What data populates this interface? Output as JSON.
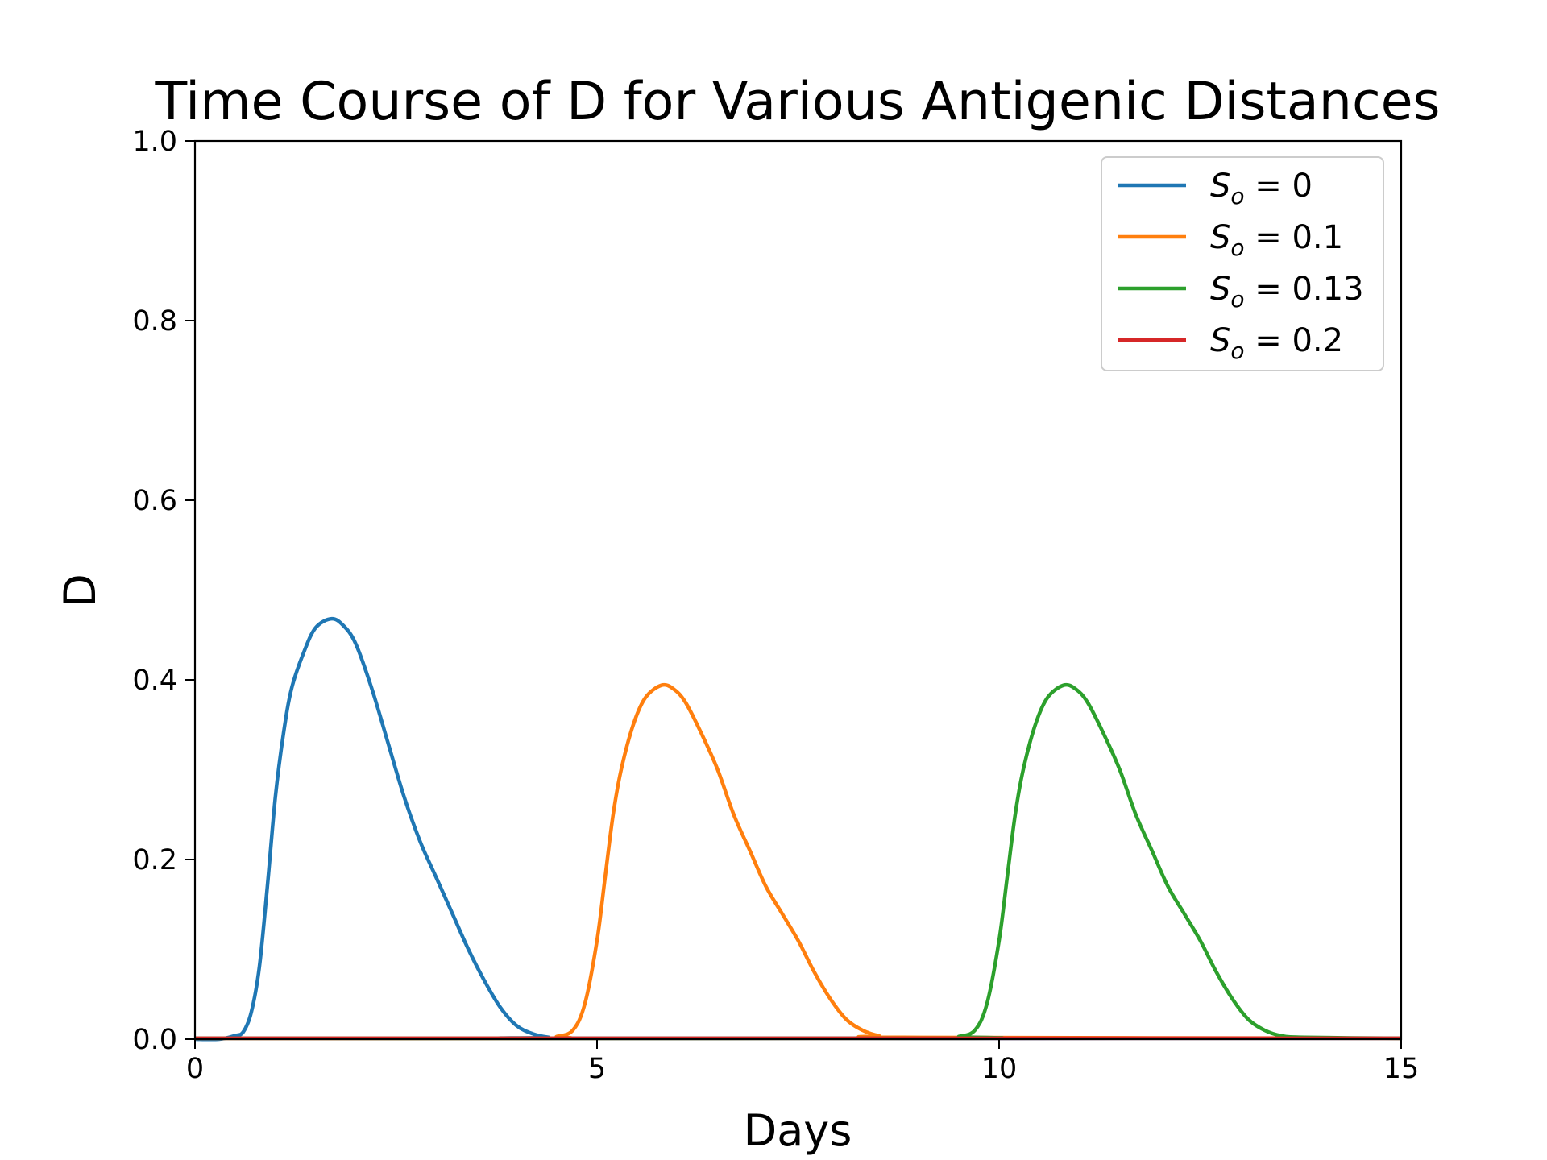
{
  "chart_data": {
    "type": "line",
    "title": "Time Course of D for Various Antigenic Distances",
    "xlabel": "Days",
    "ylabel": "D",
    "xlim": [
      0,
      15
    ],
    "ylim": [
      0,
      1.0
    ],
    "xticks": [
      0,
      5,
      10,
      15
    ],
    "xtick_labels": [
      "0",
      "5",
      "10",
      "15"
    ],
    "yticks": [
      0,
      0.2,
      0.4,
      0.6,
      0.8,
      1.0
    ],
    "ytick_labels": [
      "0.0",
      "0.2",
      "0.4",
      "0.6",
      "0.8",
      "1.0"
    ],
    "grid": false,
    "legend_position": "top-right",
    "series": [
      {
        "name": "So = 0",
        "legend_main": "S",
        "legend_sub": "o",
        "legend_value": " = 0",
        "color": "#1f77b4",
        "points": [
          [
            0,
            0
          ],
          [
            0.3,
            0
          ],
          [
            0.5,
            0.004
          ],
          [
            0.6,
            0.008
          ],
          [
            0.7,
            0.03
          ],
          [
            0.8,
            0.08
          ],
          [
            0.9,
            0.17
          ],
          [
            1.0,
            0.27
          ],
          [
            1.1,
            0.34
          ],
          [
            1.2,
            0.39
          ],
          [
            1.35,
            0.43
          ],
          [
            1.5,
            0.458
          ],
          [
            1.7,
            0.468
          ],
          [
            1.85,
            0.46
          ],
          [
            2.0,
            0.44
          ],
          [
            2.2,
            0.39
          ],
          [
            2.4,
            0.33
          ],
          [
            2.6,
            0.27
          ],
          [
            2.8,
            0.22
          ],
          [
            3.0,
            0.18
          ],
          [
            3.2,
            0.14
          ],
          [
            3.4,
            0.1
          ],
          [
            3.6,
            0.065
          ],
          [
            3.8,
            0.035
          ],
          [
            4.0,
            0.015
          ],
          [
            4.2,
            0.006
          ],
          [
            4.4,
            0.002
          ],
          [
            4.6,
            0.001
          ],
          [
            15,
            0.001
          ]
        ]
      },
      {
        "name": "So = 0.1",
        "legend_main": "S",
        "legend_sub": "o",
        "legend_value": " = 0.1",
        "color": "#ff7f0e",
        "points": [
          [
            0,
            0.001
          ],
          [
            4.3,
            0.001
          ],
          [
            4.5,
            0.003
          ],
          [
            4.7,
            0.01
          ],
          [
            4.85,
            0.04
          ],
          [
            5.0,
            0.11
          ],
          [
            5.1,
            0.18
          ],
          [
            5.2,
            0.25
          ],
          [
            5.3,
            0.3
          ],
          [
            5.45,
            0.35
          ],
          [
            5.6,
            0.38
          ],
          [
            5.8,
            0.394
          ],
          [
            5.95,
            0.39
          ],
          [
            6.1,
            0.375
          ],
          [
            6.3,
            0.34
          ],
          [
            6.5,
            0.3
          ],
          [
            6.7,
            0.25
          ],
          [
            6.9,
            0.21
          ],
          [
            7.1,
            0.17
          ],
          [
            7.3,
            0.14
          ],
          [
            7.5,
            0.11
          ],
          [
            7.7,
            0.075
          ],
          [
            7.9,
            0.045
          ],
          [
            8.1,
            0.022
          ],
          [
            8.3,
            0.01
          ],
          [
            8.5,
            0.004
          ],
          [
            8.8,
            0.002
          ],
          [
            15,
            0.001
          ]
        ]
      },
      {
        "name": "So = 0.13",
        "legend_main": "S",
        "legend_sub": "o",
        "legend_value": " = 0.13",
        "color": "#2ca02c",
        "points": [
          [
            0,
            0.001
          ],
          [
            9.3,
            0.001
          ],
          [
            9.5,
            0.003
          ],
          [
            9.7,
            0.01
          ],
          [
            9.85,
            0.04
          ],
          [
            10.0,
            0.11
          ],
          [
            10.1,
            0.18
          ],
          [
            10.2,
            0.25
          ],
          [
            10.3,
            0.3
          ],
          [
            10.45,
            0.35
          ],
          [
            10.6,
            0.38
          ],
          [
            10.8,
            0.394
          ],
          [
            10.95,
            0.39
          ],
          [
            11.1,
            0.375
          ],
          [
            11.3,
            0.34
          ],
          [
            11.5,
            0.3
          ],
          [
            11.7,
            0.25
          ],
          [
            11.9,
            0.21
          ],
          [
            12.1,
            0.17
          ],
          [
            12.3,
            0.14
          ],
          [
            12.5,
            0.11
          ],
          [
            12.7,
            0.075
          ],
          [
            12.9,
            0.045
          ],
          [
            13.1,
            0.022
          ],
          [
            13.3,
            0.01
          ],
          [
            13.5,
            0.004
          ],
          [
            13.8,
            0.002
          ],
          [
            15,
            0.001
          ]
        ]
      },
      {
        "name": "So = 0.2",
        "legend_main": "S",
        "legend_sub": "o",
        "legend_value": " = 0.2",
        "color": "#d62728",
        "points": [
          [
            0,
            0.001
          ],
          [
            15,
            0.001
          ]
        ]
      }
    ]
  }
}
